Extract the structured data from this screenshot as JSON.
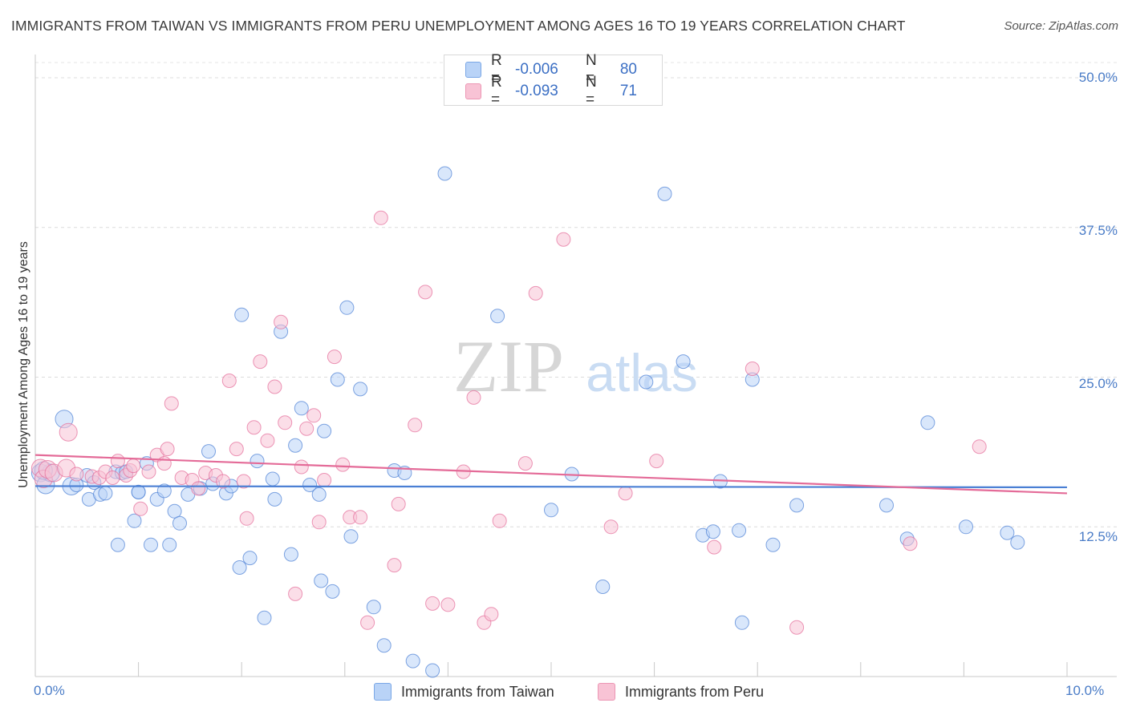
{
  "title": "IMMIGRANTS FROM TAIWAN VS IMMIGRANTS FROM PERU UNEMPLOYMENT AMONG AGES 16 TO 19 YEARS CORRELATION CHART",
  "source": "Source: ZipAtlas.com",
  "watermark": {
    "zip": "ZIP",
    "atlas": "atlas"
  },
  "legend_top": [
    {
      "r_label": "R =",
      "r_value": "-0.006",
      "n_label": "N =",
      "n_value": "80",
      "fill": "#b9d3f7",
      "stroke": "#7aa7e6"
    },
    {
      "r_label": "R =",
      "r_value": "-0.093",
      "n_label": "N =",
      "n_value": "71",
      "fill": "#f8c3d5",
      "stroke": "#ec96b4"
    }
  ],
  "chart_data": {
    "type": "scatter",
    "title": "IMMIGRANTS FROM TAIWAN VS IMMIGRANTS FROM PERU UNEMPLOYMENT AMONG AGES 16 TO 19 YEARS CORRELATION CHART",
    "xlabel": "",
    "ylabel": "Unemployment Among Ages 16 to 19 years",
    "xlim": [
      0,
      10
    ],
    "ylim": [
      0,
      50
    ],
    "x_tick_labels": [
      "0.0%",
      "10.0%"
    ],
    "y_ticks": [
      12.5,
      25.0,
      37.5,
      50.0
    ],
    "y_tick_labels": [
      "12.5%",
      "25.0%",
      "37.5%",
      "50.0%"
    ],
    "grid": true,
    "legend_position": "bottom-center",
    "series": [
      {
        "name": "Immigrants from Taiwan",
        "color": "#4a7fd4",
        "fill": "#b9d3f7",
        "trend": {
          "x": [
            0,
            10
          ],
          "y": [
            15.9,
            15.8
          ]
        },
        "points": [
          [
            0.05,
            17.0
          ],
          [
            0.1,
            16.0
          ],
          [
            0.15,
            17.0
          ],
          [
            0.28,
            21.5
          ],
          [
            0.35,
            15.9
          ],
          [
            0.4,
            16.0
          ],
          [
            0.5,
            16.8
          ],
          [
            0.52,
            14.8
          ],
          [
            0.57,
            16.2
          ],
          [
            0.63,
            15.2
          ],
          [
            0.68,
            15.3
          ],
          [
            0.78,
            17.1
          ],
          [
            0.8,
            11.0
          ],
          [
            0.84,
            17.0
          ],
          [
            0.88,
            17.1
          ],
          [
            0.96,
            13.0
          ],
          [
            1.0,
            15.4
          ],
          [
            1.08,
            17.8
          ],
          [
            1.12,
            11.0
          ],
          [
            1.18,
            14.8
          ],
          [
            1.25,
            15.5
          ],
          [
            1.3,
            11.0
          ],
          [
            1.35,
            13.8
          ],
          [
            1.4,
            12.8
          ],
          [
            1.48,
            15.2
          ],
          [
            1.6,
            15.7
          ],
          [
            1.68,
            18.8
          ],
          [
            1.72,
            16.1
          ],
          [
            1.85,
            15.3
          ],
          [
            1.9,
            15.9
          ],
          [
            1.98,
            9.1
          ],
          [
            2.0,
            30.2
          ],
          [
            2.08,
            9.9
          ],
          [
            2.15,
            18.0
          ],
          [
            2.22,
            4.9
          ],
          [
            2.3,
            16.5
          ],
          [
            2.32,
            14.8
          ],
          [
            2.38,
            28.8
          ],
          [
            2.48,
            10.2
          ],
          [
            2.52,
            19.3
          ],
          [
            2.58,
            22.4
          ],
          [
            2.66,
            16.0
          ],
          [
            2.75,
            15.2
          ],
          [
            2.77,
            8.0
          ],
          [
            2.8,
            20.5
          ],
          [
            2.88,
            7.1
          ],
          [
            2.93,
            24.8
          ],
          [
            3.02,
            30.8
          ],
          [
            3.06,
            11.7
          ],
          [
            3.15,
            24.0
          ],
          [
            3.28,
            5.8
          ],
          [
            3.38,
            2.6
          ],
          [
            3.48,
            17.2
          ],
          [
            3.58,
            17.0
          ],
          [
            3.66,
            1.3
          ],
          [
            3.85,
            0.5
          ],
          [
            3.97,
            42.0
          ],
          [
            4.48,
            30.1
          ],
          [
            5.0,
            13.9
          ],
          [
            5.2,
            16.9
          ],
          [
            5.5,
            7.5
          ],
          [
            5.92,
            24.6
          ],
          [
            6.1,
            40.3
          ],
          [
            6.28,
            26.3
          ],
          [
            6.47,
            11.8
          ],
          [
            6.57,
            12.1
          ],
          [
            6.64,
            16.3
          ],
          [
            6.82,
            12.2
          ],
          [
            6.85,
            4.5
          ],
          [
            6.95,
            24.8
          ],
          [
            7.15,
            11.0
          ],
          [
            7.38,
            14.3
          ],
          [
            8.25,
            14.3
          ],
          [
            8.45,
            11.5
          ],
          [
            8.65,
            21.2
          ],
          [
            9.02,
            12.5
          ],
          [
            9.42,
            12.0
          ],
          [
            9.52,
            11.2
          ],
          [
            0.08,
            17.2
          ],
          [
            1.0,
            15.4
          ]
        ]
      },
      {
        "name": "Immigrants from Peru",
        "color": "#e46b98",
        "fill": "#f8c3d5",
        "trend": {
          "x": [
            0,
            10
          ],
          "y": [
            18.5,
            15.3
          ]
        },
        "points": [
          [
            0.05,
            17.4
          ],
          [
            0.08,
            16.5
          ],
          [
            0.12,
            17.3
          ],
          [
            0.18,
            17.0
          ],
          [
            0.3,
            17.4
          ],
          [
            0.32,
            20.4
          ],
          [
            0.4,
            16.9
          ],
          [
            0.55,
            16.7
          ],
          [
            0.62,
            16.6
          ],
          [
            0.68,
            17.1
          ],
          [
            0.75,
            16.6
          ],
          [
            0.8,
            18.0
          ],
          [
            0.88,
            16.8
          ],
          [
            0.92,
            17.2
          ],
          [
            0.95,
            17.6
          ],
          [
            1.02,
            14.0
          ],
          [
            1.1,
            17.1
          ],
          [
            1.18,
            18.5
          ],
          [
            1.25,
            17.8
          ],
          [
            1.28,
            19.0
          ],
          [
            1.32,
            22.8
          ],
          [
            1.42,
            16.6
          ],
          [
            1.52,
            16.4
          ],
          [
            1.58,
            15.7
          ],
          [
            1.65,
            17.0
          ],
          [
            1.75,
            16.8
          ],
          [
            1.82,
            16.3
          ],
          [
            1.88,
            24.7
          ],
          [
            1.95,
            19.0
          ],
          [
            2.02,
            16.3
          ],
          [
            2.05,
            13.2
          ],
          [
            2.12,
            20.8
          ],
          [
            2.18,
            26.3
          ],
          [
            2.25,
            19.7
          ],
          [
            2.32,
            24.2
          ],
          [
            2.38,
            29.6
          ],
          [
            2.42,
            21.2
          ],
          [
            2.52,
            6.9
          ],
          [
            2.58,
            17.5
          ],
          [
            2.63,
            20.7
          ],
          [
            2.7,
            21.8
          ],
          [
            2.75,
            12.9
          ],
          [
            2.8,
            16.4
          ],
          [
            2.9,
            26.7
          ],
          [
            2.98,
            17.7
          ],
          [
            3.05,
            13.3
          ],
          [
            3.15,
            13.3
          ],
          [
            3.22,
            4.5
          ],
          [
            3.35,
            38.3
          ],
          [
            3.48,
            9.3
          ],
          [
            3.52,
            14.4
          ],
          [
            3.68,
            21.0
          ],
          [
            3.78,
            32.1
          ],
          [
            3.85,
            6.1
          ],
          [
            4.0,
            6.0
          ],
          [
            4.15,
            17.1
          ],
          [
            4.25,
            23.3
          ],
          [
            4.35,
            4.5
          ],
          [
            4.42,
            5.2
          ],
          [
            4.5,
            13.0
          ],
          [
            4.75,
            17.8
          ],
          [
            4.85,
            32.0
          ],
          [
            5.12,
            36.5
          ],
          [
            5.58,
            12.5
          ],
          [
            5.72,
            15.3
          ],
          [
            6.02,
            18.0
          ],
          [
            6.58,
            10.8
          ],
          [
            6.95,
            25.7
          ],
          [
            7.38,
            4.1
          ],
          [
            8.48,
            11.1
          ],
          [
            9.15,
            19.2
          ]
        ]
      }
    ]
  },
  "legend_bottom": [
    {
      "label": "Immigrants from Taiwan",
      "fill": "#b9d3f7",
      "stroke": "#7aa7e6"
    },
    {
      "label": "Immigrants from Peru",
      "fill": "#f8c3d5",
      "stroke": "#ec96b4"
    }
  ]
}
